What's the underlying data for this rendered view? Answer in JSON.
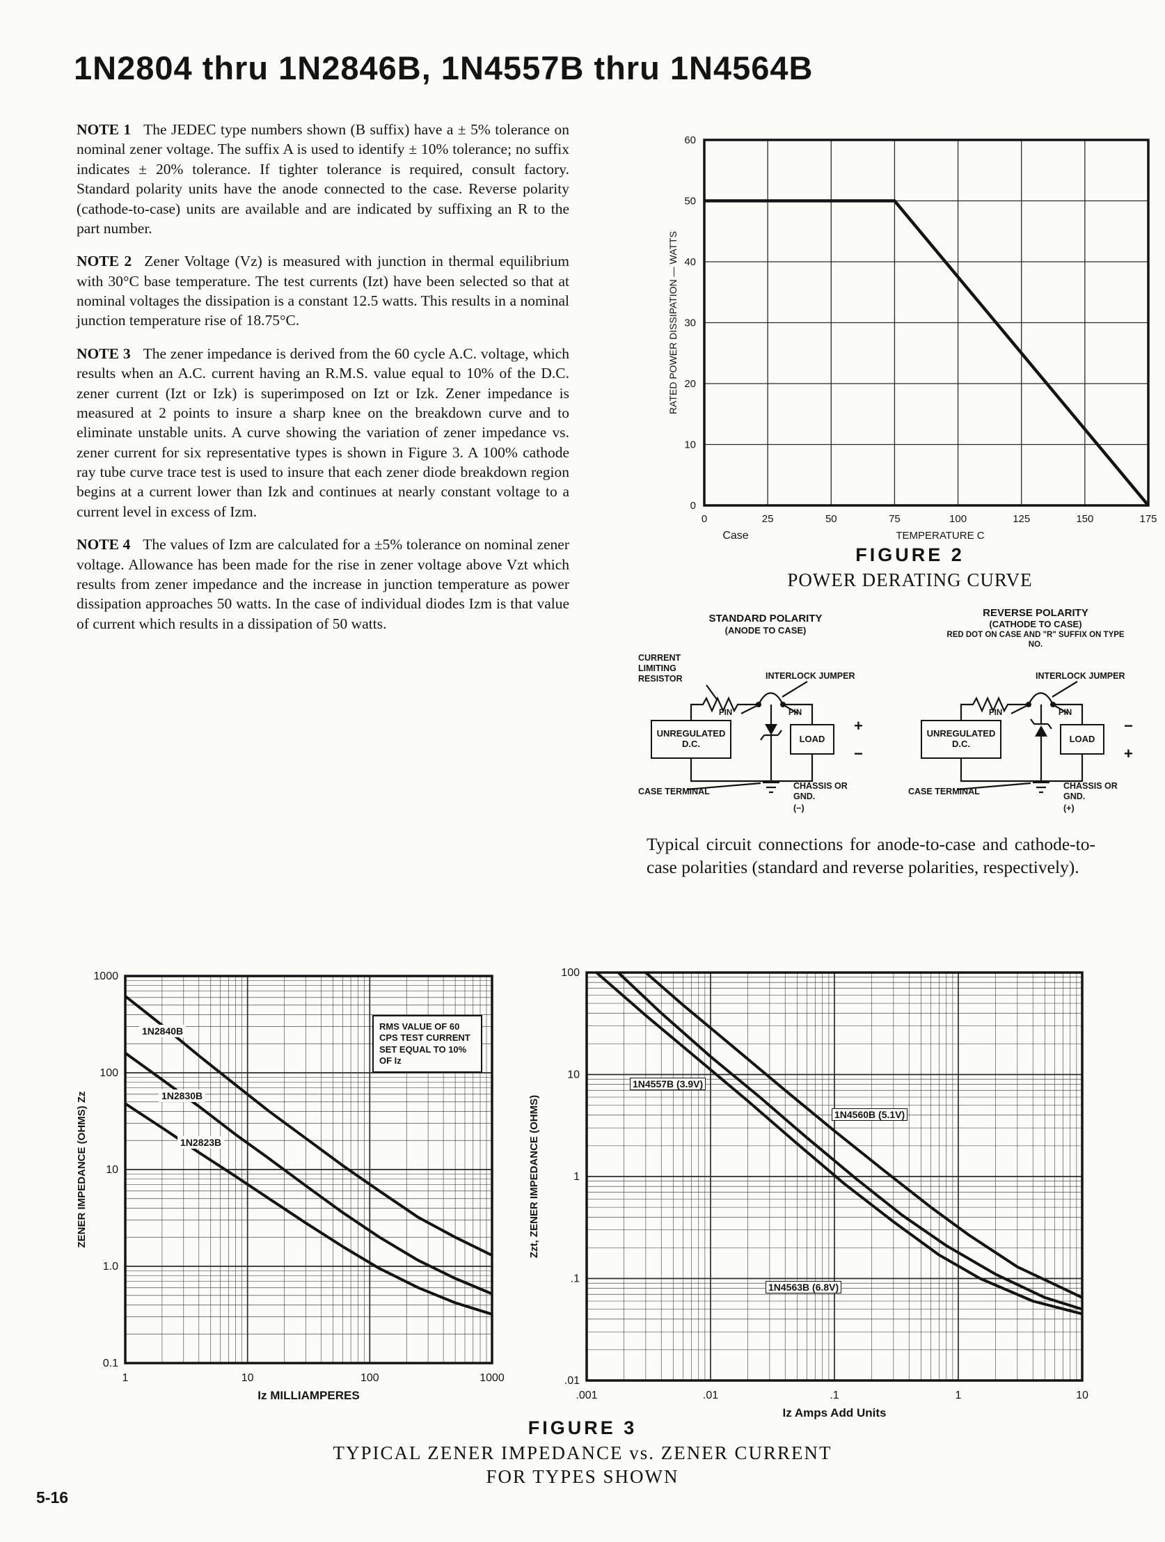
{
  "page": {
    "title": "1N2804 thru 1N2846B, 1N4557B thru 1N4564B",
    "page_number": "5-16"
  },
  "notes": [
    {
      "label": "NOTE 1",
      "text": "The JEDEC type numbers shown (B suffix) have a ± 5% tolerance on nominal zener voltage. The suffix A is used to identify ± 10% tolerance; no suffix indicates ± 20% tolerance. If tighter tolerance is required, consult factory. Standard polarity units have the anode connected to the case. Reverse polarity (cathode-to-case) units are available and are indicated by suffixing an R to the part number."
    },
    {
      "label": "NOTE 2",
      "text": "Zener Voltage (Vz) is measured with junction in thermal equilibrium with 30°C base temperature. The test currents (Izt) have been selected so that at nominal voltages the dissipation is a constant 12.5 watts. This results in a nominal junction temperature rise of 18.75°C."
    },
    {
      "label": "NOTE 3",
      "text": "The zener impedance is derived from the 60 cycle A.C. voltage, which results when an A.C. current having an R.M.S. value equal to 10% of the D.C. zener current (Izt or Izk) is superimposed on Izt or Izk. Zener impedance is measured at 2 points to insure a sharp knee on the breakdown curve and to eliminate unstable units. A curve showing the variation of zener impedance vs. zener current for six representative types is shown in Figure 3. A 100% cathode ray tube curve trace test is used to insure that each zener diode breakdown region begins at a current lower than Izk and continues at nearly constant voltage to a current level in excess of Izm."
    },
    {
      "label": "NOTE 4",
      "text": "The values of Izm are calculated for a ±5% tolerance on nominal zener voltage. Allowance has been made for the rise in zener voltage above Vzt which results from zener impedance and the increase in junction temperature as power dissipation approaches 50 watts. In the case of individual diodes Izm is that value of current which results in a dissipation of 50 watts."
    }
  ],
  "circuits": {
    "caption": "Typical circuit connections for anode-to-case and cathode-to-case polarities (standard and reverse polarities, respectively).",
    "standard": {
      "title": "STANDARD POLARITY",
      "subtitle": "(ANODE TO CASE)",
      "resistor_label": "CURRENT LIMITING RESISTOR",
      "jumper_label": "INTERLOCK JUMPER",
      "source_label": "UNREGULATED D.C.",
      "pin1": "PIN",
      "pin2": "PIN",
      "load_label": "LOAD",
      "terminal_top": "+",
      "terminal_bottom": "−",
      "case_label": "CASE TERMINAL",
      "ground_label": "CHASSIS OR GND.",
      "ground_polarity": "(−)"
    },
    "reverse": {
      "title": "REVERSE POLARITY",
      "subtitle": "(CATHODE TO CASE)",
      "note": "RED DOT ON CASE AND \"R\" SUFFIX ON TYPE NO.",
      "jumper_label": "INTERLOCK JUMPER",
      "source_label": "UNREGULATED D.C.",
      "pin1": "PIN",
      "pin2": "PIN",
      "load_label": "LOAD",
      "terminal_top": "−",
      "terminal_bottom": "+",
      "case_label": "CASE TERMINAL",
      "ground_label": "CHASSIS OR GND.",
      "ground_polarity": "(+)"
    }
  },
  "figure2": {
    "label": "FIGURE 2",
    "caption": "POWER DERATING CURVE"
  },
  "figure3": {
    "label": "FIGURE 3",
    "caption_line1": "TYPICAL ZENER IMPEDANCE vs. ZENER CURRENT",
    "caption_line2": "FOR TYPES SHOWN"
  },
  "chart_data": [
    {
      "type": "line",
      "name": "power-derating-curve",
      "title": "POWER DERATING CURVE",
      "figure_label": "FIGURE 2",
      "xlabel": "TEMPERATURE C",
      "x_origin_label": "Case",
      "ylabel": "RATED POWER DISSIPATION — WATTS",
      "xlim": [
        0,
        175
      ],
      "ylim": [
        0,
        60
      ],
      "x_ticks": [
        0,
        25,
        50,
        75,
        100,
        125,
        150,
        175
      ],
      "x_tick_labels": [
        "0",
        "25",
        "50",
        "75",
        "100",
        "125",
        "150",
        "175"
      ],
      "y_ticks": [
        0,
        10,
        20,
        30,
        40,
        50,
        60
      ],
      "y_tick_labels": [
        "0",
        "10",
        "20",
        "30",
        "40",
        "50",
        "60"
      ],
      "grid": true,
      "series": [
        {
          "name": "rated power dissipation",
          "points": [
            [
              0,
              50
            ],
            [
              75,
              50
            ],
            [
              175,
              0
            ]
          ]
        }
      ]
    },
    {
      "type": "line",
      "name": "zener-impedance-vs-current-milliamp-types",
      "scale": "log-log",
      "xlabel": "Iz MILLIAMPERES",
      "ylabel": "ZENER IMPEDANCE (OHMS) Zz",
      "xlim": [
        1,
        1000
      ],
      "ylim": [
        0.1,
        1000
      ],
      "x_ticks": [
        1,
        10,
        100,
        1000
      ],
      "x_tick_labels": [
        "1",
        "10",
        "100",
        "1000"
      ],
      "y_ticks": [
        0.1,
        1,
        10,
        100,
        1000
      ],
      "y_tick_labels": [
        "0.1",
        "1.0",
        "10",
        "100",
        "1000"
      ],
      "grid": true,
      "annotation": "RMS VALUE OF 60 CPS TEST CURRENT SET EQUAL TO 10% OF Iz",
      "series": [
        {
          "name": "1N2840B",
          "points": [
            [
              1,
              620
            ],
            [
              2,
              310
            ],
            [
              4,
              150
            ],
            [
              8,
              75
            ],
            [
              15,
              40
            ],
            [
              30,
              21
            ],
            [
              60,
              11
            ],
            [
              120,
              6
            ],
            [
              250,
              3.2
            ],
            [
              500,
              2.0
            ],
            [
              1000,
              1.3
            ]
          ]
        },
        {
          "name": "1N2830B",
          "points": [
            [
              1,
              160
            ],
            [
              2,
              85
            ],
            [
              4,
              45
            ],
            [
              8,
              23
            ],
            [
              15,
              13
            ],
            [
              30,
              6.8
            ],
            [
              60,
              3.6
            ],
            [
              120,
              2.0
            ],
            [
              250,
              1.15
            ],
            [
              500,
              0.75
            ],
            [
              1000,
              0.52
            ]
          ]
        },
        {
          "name": "1N2823B",
          "points": [
            [
              1,
              48
            ],
            [
              2,
              27
            ],
            [
              4,
              15
            ],
            [
              8,
              8.5
            ],
            [
              15,
              5.0
            ],
            [
              30,
              2.8
            ],
            [
              60,
              1.6
            ],
            [
              120,
              0.95
            ],
            [
              250,
              0.6
            ],
            [
              500,
              0.42
            ],
            [
              1000,
              0.32
            ]
          ]
        }
      ]
    },
    {
      "type": "line",
      "name": "zener-impedance-vs-current-amp-types",
      "scale": "log-log",
      "xlabel": "Iz Amps Add Units",
      "ylabel": "Zzt, ZENER IMPEDANCE (OHMS)",
      "xlim": [
        0.001,
        10
      ],
      "ylim": [
        0.01,
        100
      ],
      "x_ticks": [
        0.001,
        0.01,
        0.1,
        1,
        10
      ],
      "x_tick_labels": [
        ".001",
        ".01",
        ".1",
        "1",
        "10"
      ],
      "y_ticks": [
        0.01,
        0.1,
        1,
        10,
        100
      ],
      "y_tick_labels": [
        ".01",
        ".1",
        "1",
        "10",
        "100"
      ],
      "grid": true,
      "series": [
        {
          "name": "1N4557B (3.9V)",
          "points": [
            [
              0.0012,
              100
            ],
            [
              0.003,
              38
            ],
            [
              0.008,
              14
            ],
            [
              0.02,
              5.5
            ],
            [
              0.05,
              2.1
            ],
            [
              0.12,
              0.85
            ],
            [
              0.3,
              0.36
            ],
            [
              0.7,
              0.17
            ],
            [
              1.5,
              0.1
            ],
            [
              4,
              0.06
            ],
            [
              10,
              0.045
            ]
          ]
        },
        {
          "name": "1N4560B (5.1V)",
          "points": [
            [
              0.0018,
              100
            ],
            [
              0.004,
              40
            ],
            [
              0.01,
              15
            ],
            [
              0.025,
              6.0
            ],
            [
              0.06,
              2.4
            ],
            [
              0.15,
              0.95
            ],
            [
              0.35,
              0.42
            ],
            [
              0.8,
              0.21
            ],
            [
              2,
              0.11
            ],
            [
              5,
              0.065
            ],
            [
              10,
              0.05
            ]
          ]
        },
        {
          "name": "1N4563B (6.8V)",
          "points": [
            [
              0.003,
              100
            ],
            [
              0.006,
              48
            ],
            [
              0.015,
              19
            ],
            [
              0.04,
              7.0
            ],
            [
              0.1,
              2.8
            ],
            [
              0.25,
              1.15
            ],
            [
              0.6,
              0.5
            ],
            [
              1.2,
              0.27
            ],
            [
              3,
              0.13
            ],
            [
              7,
              0.08
            ],
            [
              10,
              0.065
            ]
          ]
        }
      ]
    }
  ]
}
